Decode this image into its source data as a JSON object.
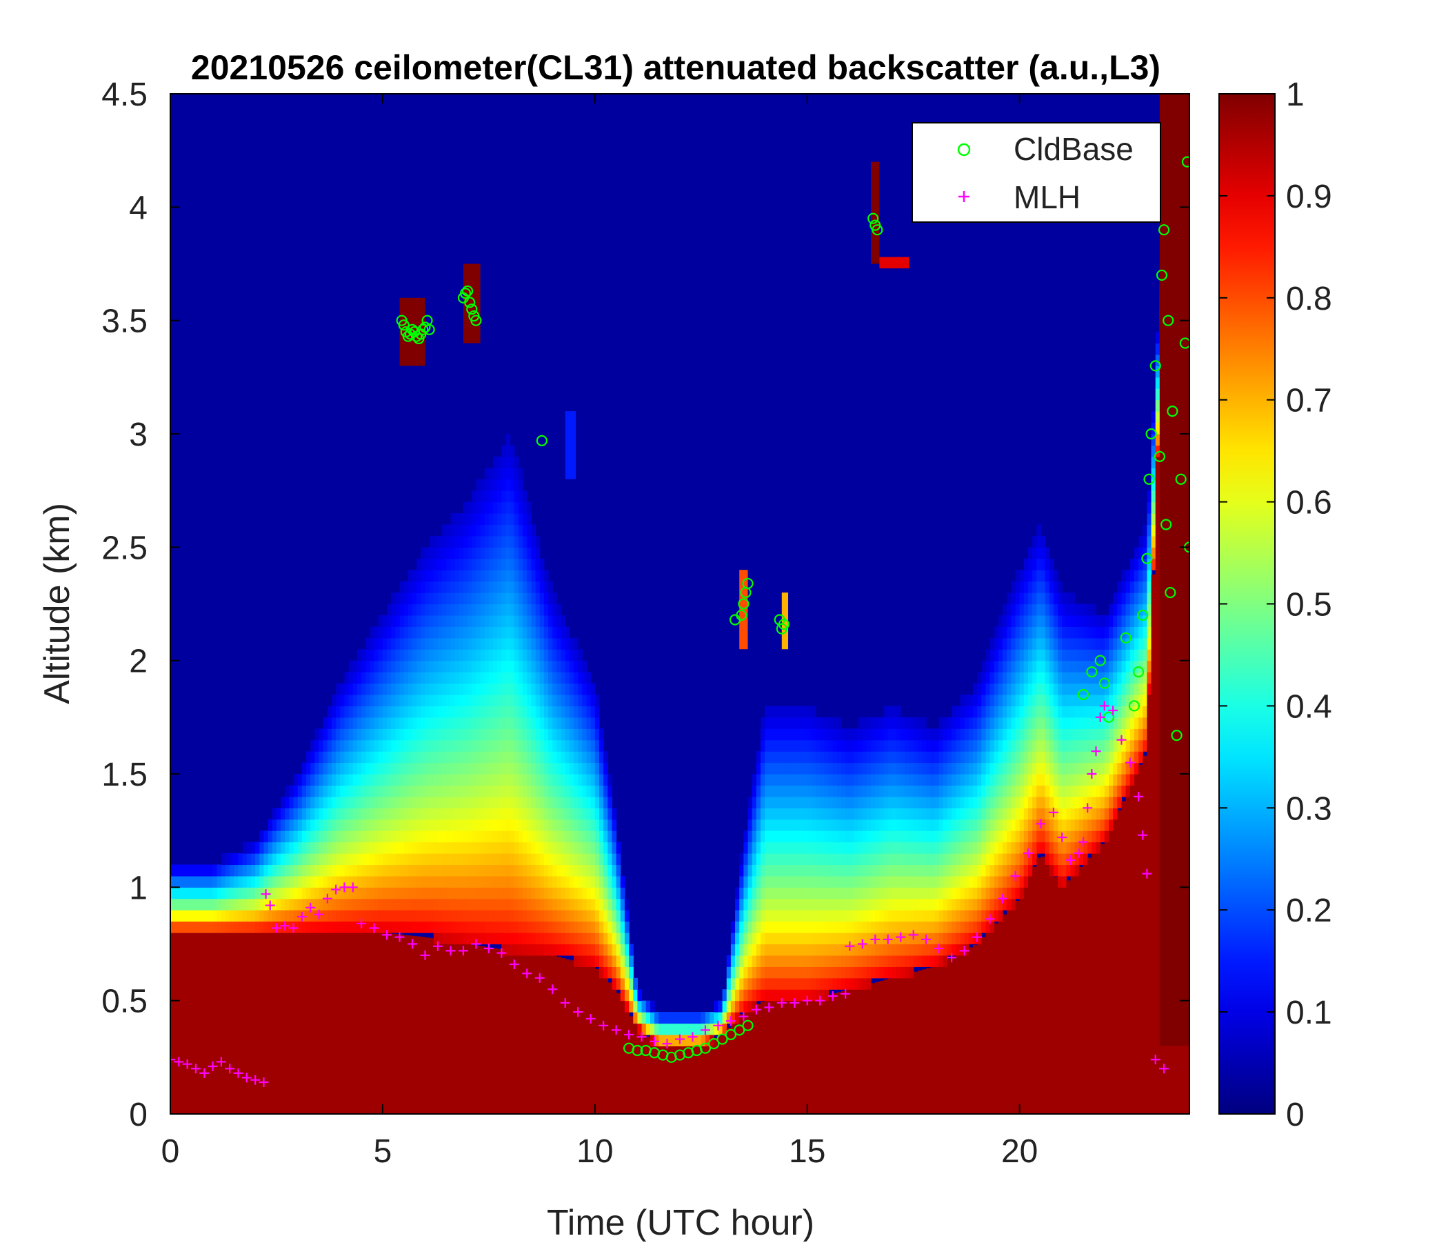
{
  "chart_data": {
    "type": "heatmap",
    "title": "20210526 ceilometer(CL31) attenuated backscatter (a.u.,L3)",
    "xlabel": "Time (UTC hour)",
    "ylabel": "Altitude (km)",
    "xlim": [
      0,
      24
    ],
    "ylim": [
      0,
      4.5
    ],
    "x_ticks": [
      0,
      5,
      10,
      15,
      20
    ],
    "x_tick_labels": [
      "0",
      "5",
      "10",
      "15",
      "20"
    ],
    "y_ticks": [
      0,
      0.5,
      1,
      1.5,
      2,
      2.5,
      3,
      3.5,
      4,
      4.5
    ],
    "y_tick_labels": [
      "0",
      "0.5",
      "1",
      "1.5",
      "2",
      "2.5",
      "3",
      "3.5",
      "4",
      "4.5"
    ],
    "colorbar": {
      "colormap": "jet",
      "range": [
        0,
        1
      ],
      "ticks": [
        0,
        0.1,
        0.2,
        0.3,
        0.4,
        0.5,
        0.6,
        0.7,
        0.8,
        0.9,
        1
      ],
      "tick_labels": [
        "0",
        "0.1",
        "0.2",
        "0.3",
        "0.4",
        "0.5",
        "0.6",
        "0.7",
        "0.8",
        "0.9",
        "1"
      ]
    },
    "legend": {
      "placement": "top-right",
      "entries": [
        {
          "label": "CldBase",
          "marker": "circle",
          "color": "#00ff00"
        },
        {
          "label": "MLH",
          "marker": "plus",
          "color": "#ff00ff"
        }
      ]
    },
    "background_value": 0.03,
    "boundary_layer": {
      "x": [
        0,
        1,
        2,
        3,
        4,
        5,
        6,
        7,
        8,
        9,
        10,
        10.5,
        11,
        11.5,
        12,
        12.5,
        13,
        13.5,
        14,
        15,
        16,
        17,
        18,
        19,
        20,
        20.5,
        21,
        22,
        22.5,
        23,
        23.5,
        24
      ],
      "saturation_top": [
        0.8,
        0.8,
        0.8,
        0.8,
        0.8,
        0.8,
        0.78,
        0.75,
        0.72,
        0.7,
        0.65,
        0.55,
        0.38,
        0.3,
        0.3,
        0.3,
        0.35,
        0.45,
        0.5,
        0.5,
        0.55,
        0.6,
        0.65,
        0.75,
        0.95,
        1.15,
        1.0,
        1.2,
        1.4,
        1.6,
        4.2,
        4.4
      ],
      "aerosol_top": [
        1.1,
        1.1,
        1.2,
        1.5,
        1.9,
        2.2,
        2.5,
        2.7,
        3.0,
        2.3,
        1.9,
        1.3,
        0.55,
        0.45,
        0.45,
        0.45,
        0.5,
        1.2,
        1.8,
        1.8,
        1.7,
        1.8,
        1.7,
        1.9,
        2.4,
        2.6,
        2.3,
        2.2,
        2.4,
        2.6,
        4.3,
        4.4
      ]
    },
    "cloud_patches": [
      {
        "x": [
          5.4,
          6.0
        ],
        "y": [
          3.3,
          3.6
        ],
        "value": 1
      },
      {
        "x": [
          6.9,
          7.3
        ],
        "y": [
          3.4,
          3.75
        ],
        "value": 1
      },
      {
        "x": [
          16.5,
          16.7
        ],
        "y": [
          3.75,
          4.2
        ],
        "value": 1
      },
      {
        "x": [
          16.7,
          17.4
        ],
        "y": [
          3.73,
          3.78
        ],
        "value": 0.9
      },
      {
        "x": [
          13.4,
          13.6
        ],
        "y": [
          2.05,
          2.4
        ],
        "value": 0.8
      },
      {
        "x": [
          14.4,
          14.55
        ],
        "y": [
          2.05,
          2.3
        ],
        "value": 0.7
      },
      {
        "x": [
          9.3,
          9.55
        ],
        "y": [
          2.8,
          3.1
        ],
        "value": 0.15
      },
      {
        "x": [
          23.3,
          24.0
        ],
        "y": [
          0.3,
          4.5
        ],
        "value": 1
      }
    ],
    "series": [
      {
        "name": "CldBase",
        "marker": "circle",
        "color": "#00ff00",
        "x": [
          5.45,
          5.5,
          5.55,
          5.6,
          5.65,
          5.7,
          5.75,
          5.8,
          5.85,
          5.9,
          5.95,
          6.0,
          6.05,
          6.1,
          6.9,
          6.95,
          7.0,
          7.05,
          7.1,
          7.15,
          7.2,
          8.75,
          10.8,
          11.0,
          11.2,
          11.4,
          11.6,
          11.8,
          12.0,
          12.2,
          12.4,
          12.6,
          12.8,
          13.0,
          13.2,
          13.4,
          13.6,
          13.3,
          13.45,
          13.5,
          13.55,
          13.6,
          14.35,
          14.4,
          14.45,
          16.55,
          16.6,
          16.65,
          21.5,
          21.7,
          21.9,
          22.0,
          22.1,
          22.5,
          22.7,
          22.8,
          22.9,
          23.0,
          23.05,
          23.1,
          23.2,
          23.3,
          23.35,
          23.4,
          23.45,
          23.5,
          23.55,
          23.6,
          23.7,
          23.8,
          23.9,
          23.95,
          24.0
        ],
        "y": [
          3.5,
          3.48,
          3.45,
          3.43,
          3.44,
          3.46,
          3.45,
          3.43,
          3.42,
          3.44,
          3.46,
          3.47,
          3.5,
          3.46,
          3.6,
          3.62,
          3.63,
          3.58,
          3.55,
          3.52,
          3.5,
          2.97,
          0.29,
          0.28,
          0.28,
          0.27,
          0.26,
          0.25,
          0.26,
          0.27,
          0.28,
          0.29,
          0.31,
          0.33,
          0.35,
          0.37,
          0.39,
          2.18,
          2.2,
          2.25,
          2.3,
          2.34,
          2.18,
          2.14,
          2.16,
          3.95,
          3.92,
          3.9,
          1.85,
          1.95,
          2.0,
          1.9,
          1.75,
          2.1,
          1.8,
          1.95,
          2.2,
          2.45,
          2.8,
          3.0,
          3.3,
          2.9,
          3.7,
          3.9,
          2.6,
          3.5,
          2.3,
          3.1,
          1.67,
          2.8,
          3.4,
          4.2,
          2.5
        ]
      },
      {
        "name": "MLH",
        "marker": "plus",
        "color": "#ff00ff",
        "x": [
          0,
          0.2,
          0.4,
          0.6,
          0.8,
          1.0,
          1.2,
          1.4,
          1.6,
          1.8,
          2.0,
          2.2,
          2.25,
          2.35,
          2.5,
          2.7,
          2.9,
          3.1,
          3.3,
          3.5,
          3.7,
          3.9,
          4.1,
          4.3,
          4.5,
          4.8,
          5.1,
          5.4,
          5.7,
          6.0,
          6.3,
          6.6,
          6.9,
          7.2,
          7.5,
          7.8,
          8.1,
          8.4,
          8.7,
          9.0,
          9.3,
          9.6,
          9.9,
          10.2,
          10.5,
          10.8,
          11.1,
          11.4,
          11.7,
          12.0,
          12.3,
          12.6,
          12.9,
          13.2,
          13.5,
          13.8,
          14.1,
          14.4,
          14.7,
          15.0,
          15.3,
          15.6,
          15.9,
          16.0,
          16.3,
          16.6,
          16.9,
          17.2,
          17.5,
          17.8,
          18.1,
          18.4,
          18.7,
          19.0,
          19.3,
          19.6,
          19.9,
          20.2,
          20.5,
          20.8,
          21.0,
          21.2,
          21.4,
          21.5,
          21.6,
          21.7,
          21.8,
          21.9,
          22.0,
          22.2,
          22.4,
          22.6,
          22.8,
          22.9,
          23.0,
          23.2,
          23.4
        ],
        "y": [
          0.24,
          0.23,
          0.22,
          0.2,
          0.18,
          0.21,
          0.23,
          0.2,
          0.18,
          0.16,
          0.15,
          0.14,
          0.97,
          0.92,
          0.82,
          0.83,
          0.82,
          0.87,
          0.91,
          0.88,
          0.95,
          0.99,
          1.0,
          1.0,
          0.84,
          0.82,
          0.79,
          0.78,
          0.75,
          0.7,
          0.74,
          0.72,
          0.72,
          0.75,
          0.73,
          0.71,
          0.66,
          0.62,
          0.6,
          0.55,
          0.49,
          0.45,
          0.42,
          0.39,
          0.37,
          0.35,
          0.34,
          0.32,
          0.31,
          0.33,
          0.34,
          0.37,
          0.39,
          0.41,
          0.43,
          0.46,
          0.47,
          0.49,
          0.49,
          0.5,
          0.5,
          0.52,
          0.53,
          0.74,
          0.75,
          0.77,
          0.77,
          0.78,
          0.79,
          0.77,
          0.73,
          0.69,
          0.72,
          0.78,
          0.86,
          0.95,
          1.05,
          1.15,
          1.28,
          1.33,
          1.22,
          1.12,
          1.15,
          1.2,
          1.35,
          1.5,
          1.6,
          1.75,
          1.8,
          1.78,
          1.65,
          1.55,
          1.4,
          1.23,
          1.06,
          0.24,
          0.2
        ]
      }
    ]
  }
}
